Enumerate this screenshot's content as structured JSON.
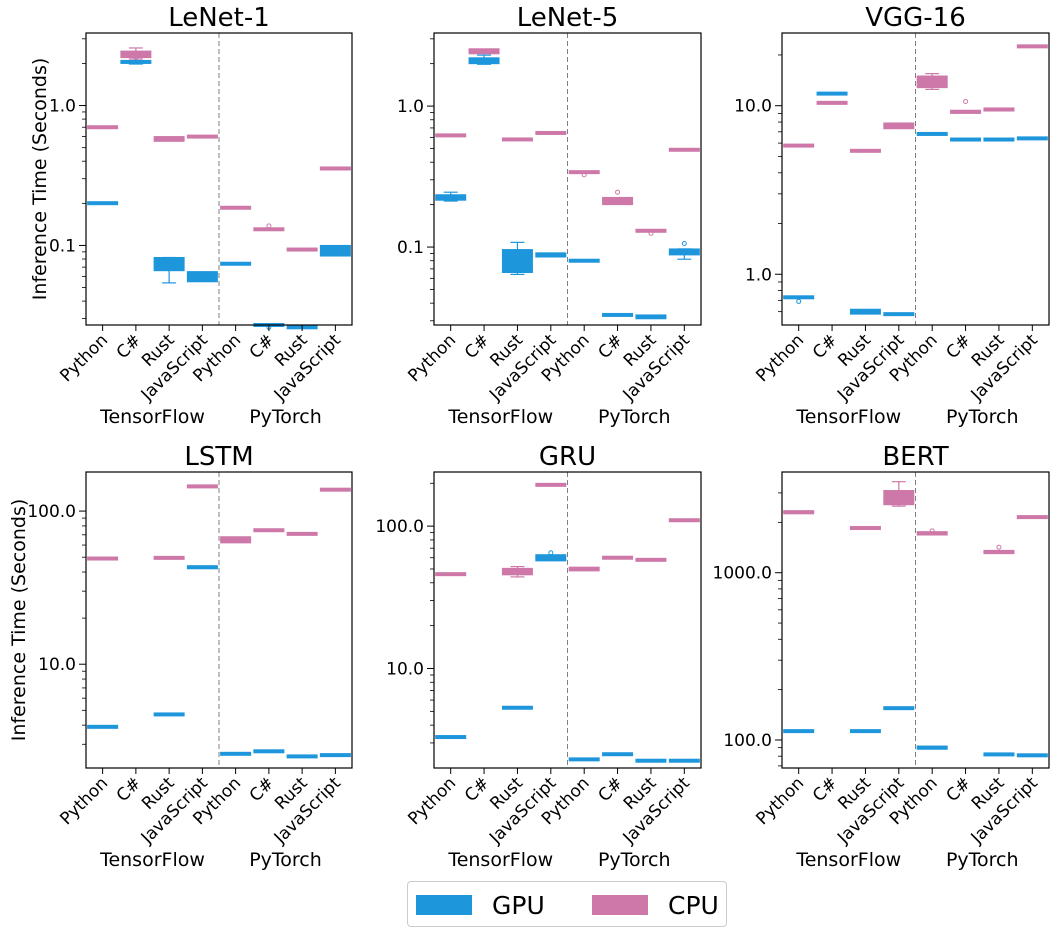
{
  "colors": {
    "GPU": "#1e96dc",
    "CPU": "#cd78a8",
    "separator": "#808080"
  },
  "legend": [
    {
      "key": "GPU",
      "label": "GPU"
    },
    {
      "key": "CPU",
      "label": "CPU"
    }
  ],
  "ylabel": "Inference Time (Seconds)",
  "categories": [
    "Python",
    "C#",
    "Rust",
    "JavaScript",
    "Python",
    "C#",
    "Rust",
    "JavaScript"
  ],
  "groups": [
    "TensorFlow",
    "PyTorch"
  ],
  "chart_data": [
    {
      "type": "box",
      "title": "LeNet-1",
      "yscale": "log",
      "ylim": [
        0.027,
        3.3
      ],
      "yticks": [
        "0.1",
        "1.0"
      ],
      "series": [
        {
          "name": "GPU",
          "medians": [
            0.2,
            2.05,
            0.072,
            0.059,
            0.074,
            0.027,
            0.026,
            0.09
          ],
          "box": [
            [
              0.198,
              0.203
            ],
            [
              2.0,
              2.1
            ],
            [
              0.066,
              0.082
            ],
            [
              0.055,
              0.065
            ],
            [
              0.073,
              0.075
            ],
            [
              0.0265,
              0.0275
            ],
            [
              0.0255,
              0.0265
            ],
            [
              0.084,
              0.1
            ]
          ],
          "whiskers": [
            null,
            [
              1.98,
              2.28
            ],
            [
              0.054,
              0.082
            ],
            null,
            null,
            null,
            null,
            null
          ],
          "outliers": [
            [],
            [
              2.2
            ],
            [],
            [],
            [],
            [
              0.026
            ],
            [],
            []
          ]
        },
        {
          "name": "CPU",
          "medians": [
            0.7,
            2.3,
            0.58,
            0.6,
            0.185,
            0.13,
            0.093,
            0.355
          ],
          "box": [
            [
              0.69,
              0.71
            ],
            [
              2.2,
              2.45
            ],
            [
              0.555,
              0.6
            ],
            [
              0.59,
              0.61
            ],
            [
              0.182,
              0.19
            ],
            [
              0.128,
              0.133
            ],
            [
              0.092,
              0.095
            ],
            [
              0.35,
              0.36
            ]
          ],
          "whiskers": [
            null,
            [
              2.15,
              2.58
            ],
            null,
            null,
            null,
            null,
            null,
            null
          ],
          "outliers": [
            [],
            [],
            [],
            [],
            [],
            [
              0.138
            ],
            [],
            []
          ]
        }
      ]
    },
    {
      "type": "box",
      "title": "LeNet-5",
      "yscale": "log",
      "ylim": [
        0.028,
        3.3
      ],
      "yticks": [
        "0.1",
        "1.0"
      ],
      "series": [
        {
          "name": "GPU",
          "medians": [
            0.225,
            2.1,
            0.072,
            0.088,
            0.08,
            0.033,
            0.032,
            0.092
          ],
          "box": [
            [
              0.215,
              0.235
            ],
            [
              2.0,
              2.2
            ],
            [
              0.066,
              0.096
            ],
            [
              0.085,
              0.091
            ],
            [
              0.079,
              0.081
            ],
            [
              0.0325,
              0.0335
            ],
            [
              0.031,
              0.033
            ],
            [
              0.088,
              0.097
            ]
          ],
          "whiskers": [
            [
              0.212,
              0.245
            ],
            [
              1.98,
              2.3
            ],
            [
              0.064,
              0.108
            ],
            null,
            null,
            null,
            null,
            [
              0.082,
              0.097
            ]
          ],
          "outliers": [
            [],
            [],
            [],
            [],
            [],
            [],
            [],
            [
              0.106
            ]
          ]
        },
        {
          "name": "CPU",
          "medians": [
            0.62,
            2.45,
            0.58,
            0.65,
            0.34,
            0.21,
            0.13,
            0.49
          ],
          "box": [
            [
              0.61,
              0.63
            ],
            [
              2.35,
              2.55
            ],
            [
              0.57,
              0.59
            ],
            [
              0.63,
              0.66
            ],
            [
              0.335,
              0.345
            ],
            [
              0.2,
              0.225
            ],
            [
              0.128,
              0.133
            ],
            [
              0.485,
              0.495
            ]
          ],
          "whiskers": [
            null,
            null,
            null,
            null,
            null,
            null,
            null,
            null
          ],
          "outliers": [
            [],
            [],
            [],
            [],
            [
              0.325
            ],
            [
              0.245
            ],
            [
              0.125
            ],
            []
          ]
        }
      ]
    },
    {
      "type": "box",
      "title": "VGG-16",
      "yscale": "log",
      "ylim": [
        0.5,
        27
      ],
      "yticks": [
        "1.0",
        "10.0"
      ],
      "series": [
        {
          "name": "GPU",
          "medians": [
            0.73,
            11.8,
            0.6,
            0.58,
            6.8,
            6.3,
            6.3,
            6.4
          ],
          "box": [
            [
              0.72,
              0.74
            ],
            [
              11.6,
              12.0
            ],
            [
              0.58,
              0.62
            ],
            [
              0.57,
              0.59
            ],
            [
              6.7,
              6.9
            ],
            [
              6.2,
              6.4
            ],
            [
              6.2,
              6.4
            ],
            [
              6.3,
              6.5
            ]
          ],
          "whiskers": [
            null,
            null,
            null,
            null,
            null,
            null,
            null,
            null
          ],
          "outliers": [
            [
              0.69
            ],
            [],
            [],
            [],
            [],
            [],
            [],
            []
          ]
        },
        {
          "name": "CPU",
          "medians": [
            5.8,
            10.4,
            5.4,
            7.6,
            14.0,
            9.2,
            9.5,
            22.5
          ],
          "box": [
            [
              5.7,
              5.9
            ],
            [
              10.2,
              10.6
            ],
            [
              5.3,
              5.5
            ],
            [
              7.3,
              7.9
            ],
            [
              12.8,
              15.0
            ],
            [
              9.0,
              9.4
            ],
            [
              9.3,
              9.7
            ],
            [
              22.2,
              22.8
            ]
          ],
          "whiskers": [
            null,
            null,
            null,
            null,
            [
              12.5,
              15.5
            ],
            null,
            null,
            null
          ],
          "outliers": [
            [],
            [],
            [],
            [],
            [],
            [
              10.6
            ],
            [],
            []
          ]
        }
      ]
    },
    {
      "type": "box",
      "title": "LSTM",
      "yscale": "log",
      "ylim": [
        2.1,
        180
      ],
      "yticks": [
        "10.0",
        "100.0"
      ],
      "series": [
        {
          "name": "GPU",
          "medians": [
            3.9,
            null,
            4.7,
            43.0,
            2.6,
            2.7,
            2.5,
            2.55
          ],
          "box": [
            [
              3.85,
              3.95
            ],
            null,
            [
              4.65,
              4.75
            ],
            [
              42.0,
              44.0
            ],
            [
              2.55,
              2.65
            ],
            [
              2.65,
              2.75
            ],
            [
              2.48,
              2.52
            ],
            [
              2.5,
              2.6
            ]
          ],
          "whiskers": [
            null,
            null,
            null,
            null,
            null,
            null,
            null,
            null
          ],
          "outliers": [
            [],
            [],
            [],
            [],
            [],
            [],
            [],
            []
          ]
        },
        {
          "name": "CPU",
          "medians": [
            49.0,
            null,
            49.5,
            145.0,
            65.0,
            75.0,
            71.0,
            138.0
          ],
          "box": [
            [
              48.0,
              50.0
            ],
            null,
            [
              48.5,
              50.5
            ],
            [
              143.0,
              147.0
            ],
            [
              62.0,
              68.0
            ],
            [
              74.0,
              76.0
            ],
            [
              70.0,
              72.0
            ],
            [
              136.0,
              140.0
            ]
          ],
          "whiskers": [
            null,
            null,
            null,
            null,
            null,
            null,
            null,
            null
          ],
          "outliers": [
            [],
            [],
            [],
            [],
            [],
            [],
            [],
            []
          ]
        }
      ]
    },
    {
      "type": "box",
      "title": "GRU",
      "yscale": "log",
      "ylim": [
        2.0,
        240
      ],
      "yticks": [
        "10.0",
        "100.0"
      ],
      "series": [
        {
          "name": "GPU",
          "medians": [
            3.3,
            null,
            5.3,
            60.0,
            2.3,
            2.5,
            2.25,
            2.25
          ],
          "box": [
            [
              3.25,
              3.35
            ],
            null,
            [
              5.25,
              5.35
            ],
            [
              57.0,
              63.0
            ],
            [
              2.25,
              2.35
            ],
            [
              2.45,
              2.55
            ],
            [
              2.22,
              2.28
            ],
            [
              2.22,
              2.28
            ]
          ],
          "whiskers": [
            null,
            null,
            null,
            null,
            null,
            null,
            null,
            null
          ],
          "outliers": [
            [],
            [],
            [],
            [
              65.0
            ],
            [],
            [],
            [],
            []
          ]
        },
        {
          "name": "CPU",
          "medians": [
            46.0,
            null,
            48.0,
            195.0,
            50.0,
            60.0,
            58.0,
            110.0
          ],
          "box": [
            [
              45.0,
              47.0
            ],
            null,
            [
              45.5,
              50.5
            ],
            [
              192.0,
              198.0
            ],
            [
              48.5,
              51.5
            ],
            [
              59.0,
              61.0
            ],
            [
              57.0,
              59.0
            ],
            [
              108.0,
              112.0
            ]
          ],
          "whiskers": [
            null,
            null,
            [
              44.0,
              52.0
            ],
            null,
            null,
            null,
            null,
            null
          ],
          "outliers": [
            [],
            [],
            [],
            [],
            [],
            [],
            [],
            []
          ]
        }
      ]
    },
    {
      "type": "box",
      "title": "BERT",
      "yscale": "log",
      "ylim": [
        68,
        4000
      ],
      "yticks": [
        "100.0",
        "1000.0"
      ],
      "series": [
        {
          "name": "GPU",
          "medians": [
            113.0,
            null,
            113.0,
            155.0,
            90.0,
            null,
            82.0,
            81.0
          ],
          "box": [
            [
              111.0,
              115.0
            ],
            null,
            [
              111.0,
              115.0
            ],
            [
              153.0,
              157.0
            ],
            [
              88.0,
              92.0
            ],
            null,
            [
              80.5,
              83.5
            ],
            [
              79.5,
              82.5
            ]
          ],
          "whiskers": [
            null,
            null,
            null,
            null,
            null,
            null,
            null,
            null
          ],
          "outliers": [
            [],
            [],
            [],
            [],
            [],
            [],
            [],
            []
          ]
        },
        {
          "name": "CPU",
          "medians": [
            2300.0,
            null,
            1850.0,
            2800.0,
            1720.0,
            null,
            1330.0,
            2150.0
          ],
          "box": [
            [
              2250.0,
              2350.0
            ],
            null,
            [
              1820.0,
              1880.0
            ],
            [
              2550.0,
              3100.0
            ],
            [
              1680.0,
              1760.0
            ],
            null,
            [
              1300.0,
              1360.0
            ],
            [
              2120.0,
              2180.0
            ]
          ],
          "whiskers": [
            null,
            null,
            null,
            [
              2500.0,
              3500.0
            ],
            null,
            null,
            null,
            null
          ],
          "outliers": [
            [],
            [],
            [],
            [],
            [
              1780.0
            ],
            [],
            [
              1420.0
            ],
            []
          ]
        }
      ]
    }
  ]
}
